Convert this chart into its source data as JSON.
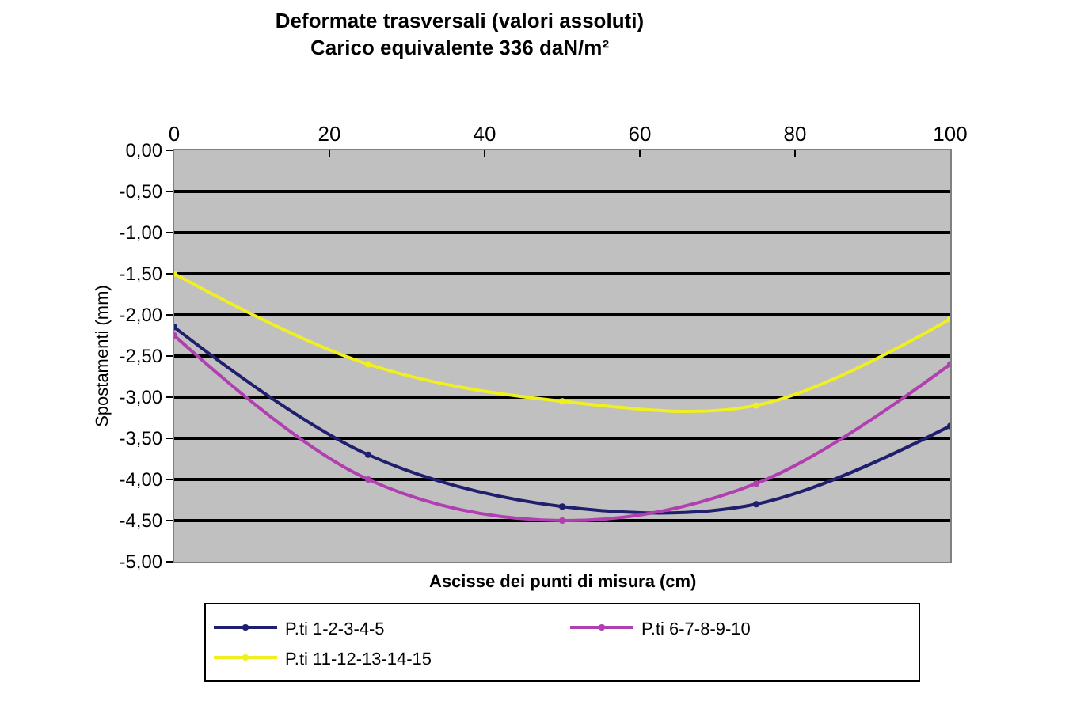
{
  "chart_data": {
    "type": "line",
    "title": "Deformate trasversali (valori assoluti)",
    "subtitle": "Carico equivalente 336 daN/m²",
    "xlabel": "Ascisse dei punti di misura (cm)",
    "ylabel": "Spostamenti (mm)",
    "x": [
      0,
      25,
      50,
      75,
      100
    ],
    "series": [
      {
        "name": "P.ti 1-2-3-4-5",
        "color": "#1f1f6e",
        "values": [
          -2.15,
          -3.7,
          -4.33,
          -4.3,
          -3.35
        ]
      },
      {
        "name": "P.ti 6-7-8-9-10",
        "color": "#b040b0",
        "values": [
          -2.25,
          -4.0,
          -4.5,
          -4.05,
          -2.6
        ]
      },
      {
        "name": "P.ti 11-12-13-14-15",
        "color": "#f0f020",
        "values": [
          -1.5,
          -2.6,
          -3.05,
          -3.1,
          -2.05
        ]
      }
    ],
    "xlim": [
      0,
      100
    ],
    "xticks": [
      0,
      20,
      40,
      60,
      80,
      100
    ],
    "ylim": [
      -5,
      0
    ],
    "yticks": [
      {
        "value": 0,
        "label": "0,00"
      },
      {
        "value": -0.5,
        "label": "-0,50"
      },
      {
        "value": -1,
        "label": "-1,00"
      },
      {
        "value": -1.5,
        "label": "-1,50"
      },
      {
        "value": -2,
        "label": "-2,00"
      },
      {
        "value": -2.5,
        "label": "-2,50"
      },
      {
        "value": -3,
        "label": "-3,00"
      },
      {
        "value": -3.5,
        "label": "-3,50"
      },
      {
        "value": -4,
        "label": "-4,00"
      },
      {
        "value": -4.5,
        "label": "-4,50"
      },
      {
        "value": -5,
        "label": "-5,00"
      }
    ],
    "grid": "y",
    "legend": "bottom",
    "marker": "circle",
    "line_style": "solid"
  }
}
